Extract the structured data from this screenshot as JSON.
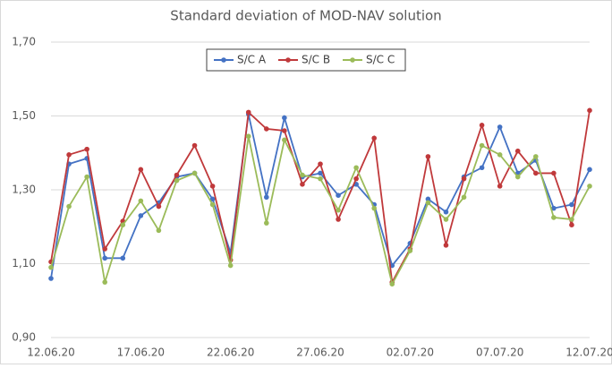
{
  "chart_data": {
    "type": "line",
    "title": "Standard deviation of MOD-NAV solution",
    "categories": [
      "12.06.20",
      null,
      null,
      null,
      null,
      "17.06.20",
      null,
      null,
      null,
      null,
      "22.06.20",
      null,
      null,
      null,
      null,
      "27.06.20",
      null,
      null,
      null,
      null,
      "02.07.20",
      null,
      null,
      null,
      null,
      "07.07.20",
      null,
      null,
      null,
      null,
      "12.07.20"
    ],
    "series": [
      {
        "name": "S/C A",
        "color": "#4472c4",
        "values": [
          1.06,
          1.37,
          1.385,
          1.115,
          1.115,
          1.23,
          1.265,
          1.335,
          1.345,
          1.275,
          1.13,
          1.505,
          1.28,
          1.495,
          1.335,
          1.345,
          1.285,
          1.315,
          1.26,
          1.095,
          1.155,
          1.275,
          1.24,
          1.335,
          1.36,
          1.47,
          1.345,
          1.38,
          1.25,
          1.26,
          1.355
        ]
      },
      {
        "name": "S/C B",
        "color": "#c0393b",
        "values": [
          1.105,
          1.395,
          1.41,
          1.14,
          1.215,
          1.355,
          1.255,
          1.34,
          1.42,
          1.31,
          1.11,
          1.51,
          1.465,
          1.46,
          1.315,
          1.37,
          1.22,
          1.33,
          1.44,
          1.05,
          1.14,
          1.39,
          1.15,
          1.33,
          1.475,
          1.31,
          1.405,
          1.345,
          1.345,
          1.205,
          1.515
        ]
      },
      {
        "name": "S/C C",
        "color": "#9bbb59",
        "values": [
          1.09,
          1.255,
          1.335,
          1.05,
          1.205,
          1.27,
          1.19,
          1.325,
          1.345,
          1.26,
          1.095,
          1.445,
          1.21,
          1.435,
          1.34,
          1.33,
          1.245,
          1.36,
          1.25,
          1.045,
          1.135,
          1.265,
          1.22,
          1.28,
          1.42,
          1.395,
          1.335,
          1.39,
          1.225,
          1.22,
          1.31
        ]
      }
    ],
    "ylim": [
      0.9,
      1.7
    ],
    "yticks": [
      {
        "value": 0.9,
        "label": "0,90"
      },
      {
        "value": 1.1,
        "label": "1,10"
      },
      {
        "value": 1.3,
        "label": "1,30"
      },
      {
        "value": 1.5,
        "label": "1,50"
      },
      {
        "value": 1.7,
        "label": "1,70"
      }
    ],
    "grid": true,
    "legend": "top"
  }
}
